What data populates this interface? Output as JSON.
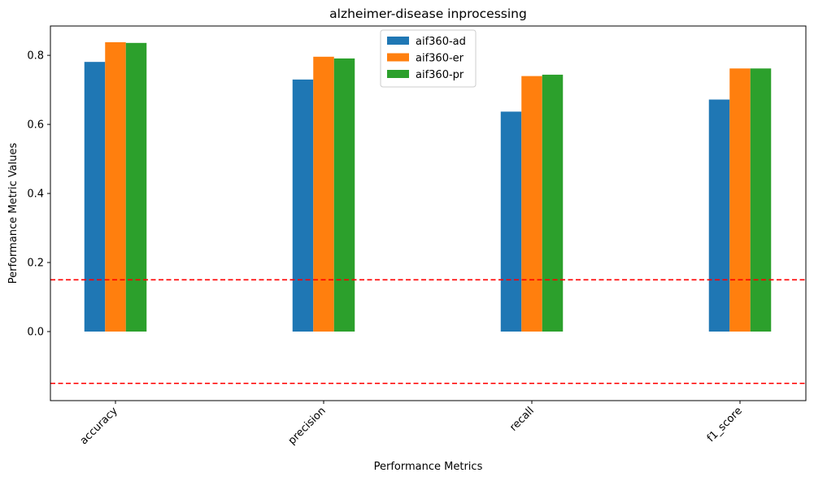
{
  "chart_data": {
    "type": "bar",
    "title": "alzheimer-disease inprocessing",
    "xlabel": "Performance Metrics",
    "ylabel": "Performance Metric Values",
    "categories": [
      "accuracy",
      "precision",
      "recall",
      "f1_score"
    ],
    "series": [
      {
        "name": "aif360-ad",
        "color": "#1f77b4",
        "values": [
          0.781,
          0.73,
          0.637,
          0.672
        ]
      },
      {
        "name": "aif360-er",
        "color": "#ff7f0e",
        "values": [
          0.838,
          0.796,
          0.74,
          0.762
        ]
      },
      {
        "name": "aif360-pr",
        "color": "#2ca02c",
        "values": [
          0.836,
          0.791,
          0.744,
          0.762
        ]
      }
    ],
    "ylim": [
      -0.2,
      0.885
    ],
    "yticks": [
      0.0,
      0.2,
      0.4,
      0.6,
      0.8
    ],
    "ytick_labels": [
      "0.0",
      "0.2",
      "0.4",
      "0.6",
      "0.8"
    ],
    "reference_lines": [
      {
        "y": 0.15,
        "color": "#ff0000",
        "style": "dashed"
      },
      {
        "y": -0.15,
        "color": "#ff0000",
        "style": "dashed"
      }
    ],
    "grid": false,
    "legend_position": "upper-center"
  }
}
